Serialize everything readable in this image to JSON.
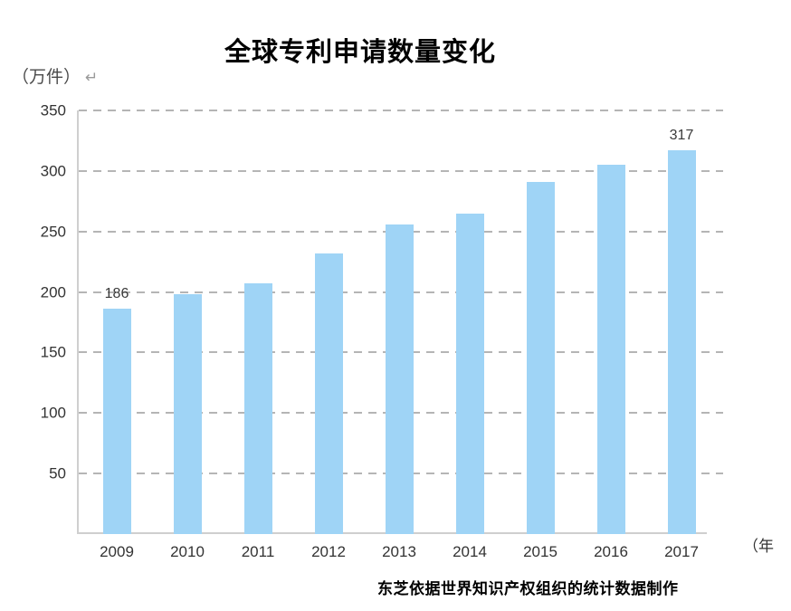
{
  "header": {
    "title": "全球专利申请数量变化",
    "unit_label": "（万件）",
    "return_mark": "↵"
  },
  "footer": {
    "credit": "东芝依据世界知识产权组织的统计数据制作"
  },
  "chart_data": {
    "type": "bar",
    "title": "全球专利申请数量变化",
    "ylabel": "（万件）",
    "xlabel": "（年",
    "categories": [
      "2009",
      "2010",
      "2011",
      "2012",
      "2013",
      "2014",
      "2015",
      "2016",
      "2017"
    ],
    "values": [
      186,
      198,
      207,
      232,
      256,
      265,
      291,
      305,
      317
    ],
    "value_labels": [
      {
        "index": 0,
        "text": "186"
      },
      {
        "index": 8,
        "text": "317"
      }
    ],
    "ylim": [
      0,
      350
    ],
    "yticks": [
      50,
      100,
      150,
      200,
      250,
      300,
      350
    ],
    "grid": "horizontal-dashed",
    "legend": "none",
    "bar_color": "#9fd4f6",
    "gridline_color": "#b5b5b5",
    "axis_color": "#cfcfcf",
    "label_color": "#333333"
  }
}
